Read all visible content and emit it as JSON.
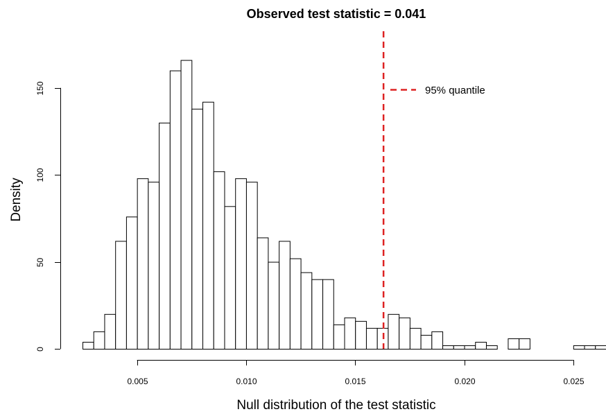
{
  "chart_data": {
    "type": "bar",
    "title": "Observed test statistic = 0.041",
    "xlabel": "Null distribution of the test statistic",
    "ylabel": "Density",
    "bin_width": 0.0005,
    "x_start": 0.0025,
    "values": [
      4,
      10,
      20,
      62,
      76,
      98,
      96,
      130,
      160,
      166,
      138,
      142,
      102,
      82,
      98,
      96,
      64,
      50,
      62,
      52,
      44,
      40,
      40,
      14,
      18,
      16,
      12,
      12,
      20,
      18,
      12,
      8,
      10,
      2,
      2,
      2,
      4,
      2,
      0,
      6,
      6,
      0,
      0,
      0,
      0,
      2,
      2,
      2
    ],
    "xlim": [
      0.0025,
      0.0265
    ],
    "ylim": [
      0,
      175
    ],
    "x_ticks": [
      0.005,
      0.01,
      0.015,
      0.02,
      0.025
    ],
    "x_tick_labels": [
      "0.005",
      "0.010",
      "0.015",
      "0.020",
      "0.025"
    ],
    "y_ticks": [
      0,
      50,
      100,
      150
    ],
    "y_tick_labels": [
      "0",
      "50",
      "100",
      "150"
    ],
    "quantile_line": {
      "x": 0.0163,
      "color": "#dd2222",
      "style": "dashed"
    },
    "legend": {
      "label": "95% quantile",
      "position": "top-right"
    },
    "grid": false
  }
}
